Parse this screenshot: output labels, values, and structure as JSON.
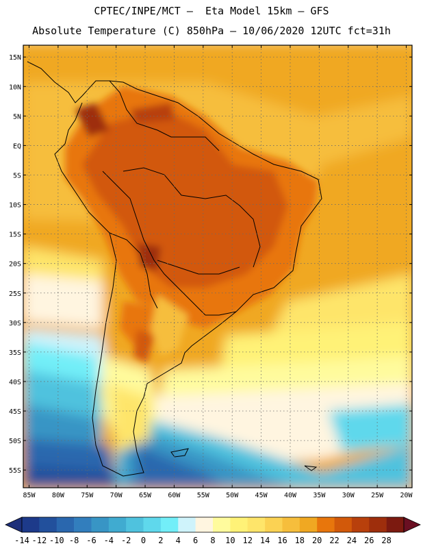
{
  "header": {
    "line1": "CPTEC/INPE/MCT –  Eta Model 15km – GFS",
    "line2": "Absolute Temperature (C) 850hPa – 10/06/2020 12UTC fct=31h"
  },
  "map": {
    "lat_labels": [
      "15N",
      "10N",
      "5N",
      "EQ",
      "5S",
      "10S",
      "15S",
      "20S",
      "25S",
      "30S",
      "35S",
      "40S",
      "45S",
      "50S",
      "55S"
    ],
    "lat_values": [
      15,
      10,
      5,
      0,
      -5,
      -10,
      -15,
      -20,
      -25,
      -30,
      -35,
      -40,
      -45,
      -50,
      -55
    ],
    "lon_labels": [
      "85W",
      "80W",
      "75W",
      "70W",
      "65W",
      "60W",
      "55W",
      "50W",
      "45W",
      "40W",
      "35W",
      "30W",
      "25W",
      "20W"
    ],
    "lon_values": [
      -85,
      -80,
      -75,
      -70,
      -65,
      -60,
      -55,
      -50,
      -45,
      -40,
      -35,
      -30,
      -25,
      -20
    ],
    "lat_range": [
      -58,
      17
    ],
    "lon_range": [
      -86,
      -19
    ],
    "gridlines": "dotted"
  },
  "colorbar": {
    "labels": [
      "-14",
      "-12",
      "-10",
      "-8",
      "-6",
      "-4",
      "-2",
      "0",
      "2",
      "4",
      "6",
      "8",
      "10",
      "12",
      "14",
      "16",
      "18",
      "20",
      "22",
      "24",
      "26",
      "28"
    ],
    "colors": [
      "#1d3a8a",
      "#22509c",
      "#2a67ae",
      "#327ebd",
      "#3895c5",
      "#40abd0",
      "#4fc2de",
      "#5fd8ec",
      "#72eef8",
      "#cff3fb",
      "#fff5e0",
      "#fffb9d",
      "#fff277",
      "#fee56a",
      "#fbd253",
      "#f6be3c",
      "#f0a822",
      "#e8760c",
      "#d2590a",
      "#b8400c",
      "#9e2e0c",
      "#7c1a10"
    ],
    "under_color": "#1d2f7a",
    "over_color": "#6a0f22"
  }
}
